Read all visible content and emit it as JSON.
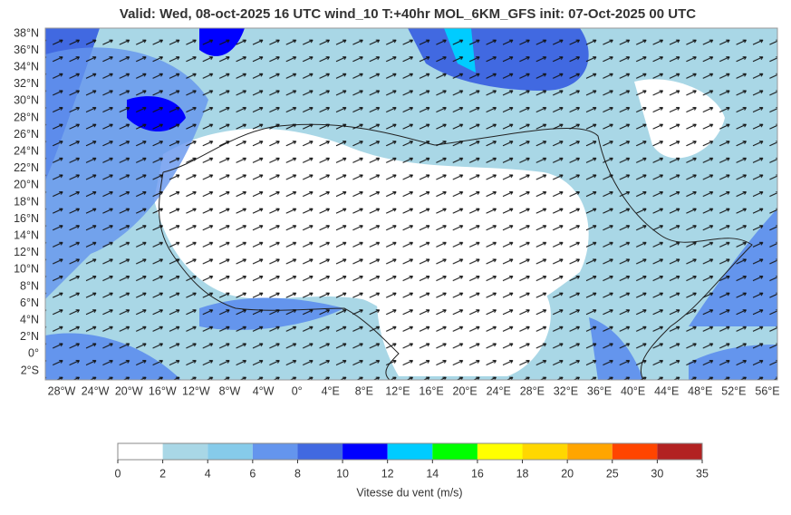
{
  "header": {
    "title": "Valid: Wed, 08-oct-2025   16 UTC   wind_10   T:+40hr   MOL_6KM_GFS   init: 07-Oct-2025    00 UTC"
  },
  "map": {
    "lat_labels": [
      "38°N",
      "36°N",
      "34°N",
      "32°N",
      "30°N",
      "28°N",
      "26°N",
      "24°N",
      "22°N",
      "20°N",
      "18°N",
      "16°N",
      "14°N",
      "12°N",
      "10°N",
      "8°N",
      "6°N",
      "4°N",
      "2°N",
      "0°",
      "2°S"
    ],
    "lon_labels": [
      "28°W",
      "24°W",
      "20°W",
      "16°W",
      "12°W",
      "8°W",
      "4°W",
      "0°",
      "4°E",
      "8°E",
      "12°E",
      "16°E",
      "20°E",
      "24°E",
      "28°E",
      "32°E",
      "36°E",
      "40°E",
      "44°E",
      "48°E",
      "52°E",
      "56°E"
    ]
  },
  "colorbar": {
    "ticks": [
      0,
      2,
      4,
      6,
      8,
      10,
      12,
      14,
      16,
      18,
      20,
      25,
      30,
      35
    ],
    "colors": [
      "#ffffff",
      "#a9d7e6",
      "#86cbea",
      "#6495ed",
      "#4169e1",
      "#0000ff",
      "#00ccff",
      "#00ff00",
      "#ffff00",
      "#ffd700",
      "#ffa500",
      "#ff4500",
      "#b22222"
    ],
    "label": "Vitesse du vent (m/s)"
  }
}
